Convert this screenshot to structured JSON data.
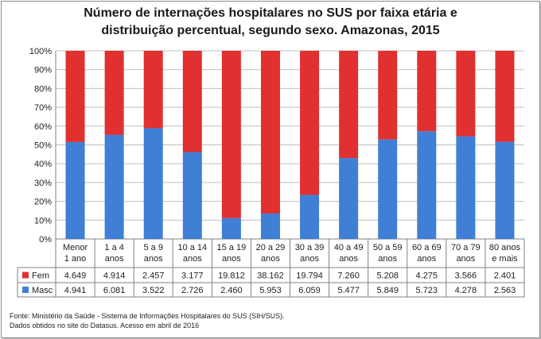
{
  "chart_data": {
    "type": "bar",
    "stacking": "percent",
    "title_lines": [
      "Número de internações hospitalares no SUS por faixa etária e",
      "distribuição percentual, segundo sexo.  Amazonas, 2015"
    ],
    "categories": [
      [
        "Menor",
        "1 ano"
      ],
      [
        "1 a 4",
        "anos"
      ],
      [
        "5 a 9",
        "anos"
      ],
      [
        "10 a 14",
        "anos"
      ],
      [
        "15 a 19",
        "anos"
      ],
      [
        "20 a 29",
        "anos"
      ],
      [
        "30 a 39",
        "anos"
      ],
      [
        "40 a 49",
        "anos"
      ],
      [
        "50 a 59",
        "anos"
      ],
      [
        "60 a 69",
        "anos"
      ],
      [
        "70 a 79",
        "anos"
      ],
      [
        "80 anos",
        "e mais"
      ]
    ],
    "y_ticks": [
      "0%",
      "10%",
      "20%",
      "30%",
      "40%",
      "50%",
      "60%",
      "70%",
      "80%",
      "90%",
      "100%"
    ],
    "ylim": [
      0,
      100
    ],
    "grid": true,
    "series": [
      {
        "name": "Fem",
        "color": "#e03030",
        "values": [
          4649,
          4914,
          2457,
          3177,
          19812,
          38162,
          19794,
          7260,
          5208,
          4275,
          3566,
          2401
        ],
        "labels": [
          "4.649",
          "4.914",
          "2.457",
          "3.177",
          "19.812",
          "38.162",
          "19.794",
          "7.260",
          "5.208",
          "4.275",
          "3.566",
          "2.401"
        ]
      },
      {
        "name": "Masc",
        "color": "#3f7fd6",
        "values": [
          4941,
          6081,
          3522,
          2726,
          2460,
          5953,
          6059,
          5477,
          5849,
          5723,
          4278,
          2563
        ],
        "labels": [
          "4.941",
          "6.081",
          "3.522",
          "2.726",
          "2.460",
          "5.953",
          "6.059",
          "5.477",
          "5.849",
          "5.723",
          "4.278",
          "2.563"
        ]
      }
    ],
    "legend_placement": "data-table-left"
  },
  "footer": {
    "line1": "Fonte: Ministério da Saúde - Sistema de Informações Hospitalares do SUS (SIH/SUS).",
    "line2": "Dados obtidos no site do Datasus. Acesso em abril de 2016"
  }
}
